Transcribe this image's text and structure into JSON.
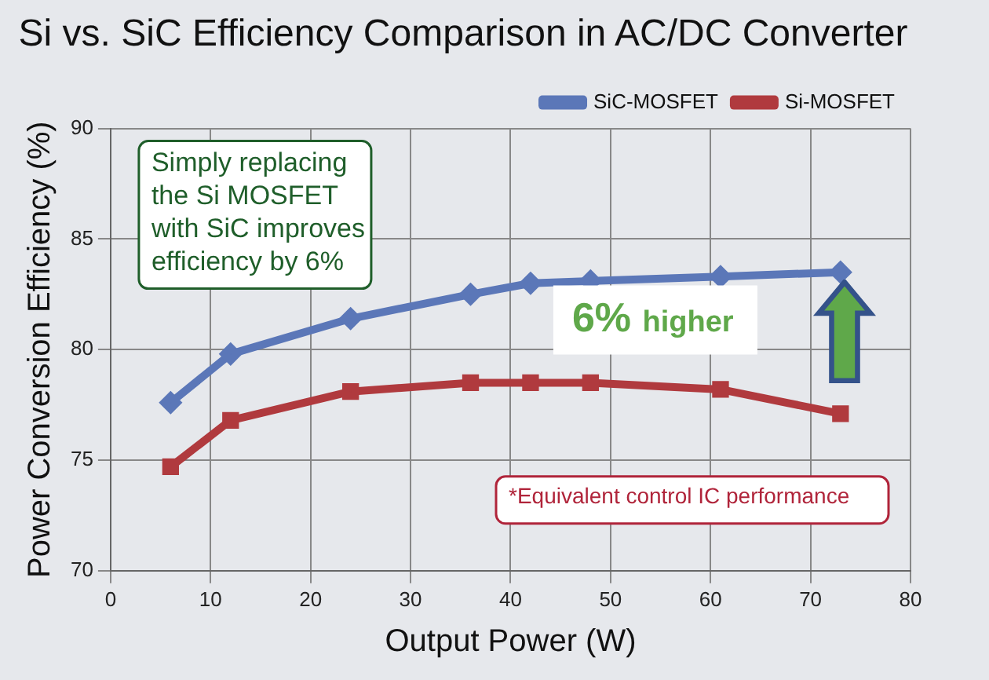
{
  "chart_data": {
    "type": "line",
    "title": "Si vs. SiC Efficiency Comparison in AC/DC Converter",
    "xlabel": "Output Power (W)",
    "ylabel": "Power Conversion Efficiency (%)",
    "xlim": [
      0,
      80
    ],
    "xticks": [
      0,
      10,
      20,
      30,
      40,
      50,
      60,
      70,
      80
    ],
    "ylim": [
      70,
      90
    ],
    "yticks": [
      70,
      75,
      80,
      85,
      90
    ],
    "grid": true,
    "legend": "top right",
    "line_style": "solid",
    "series": [
      {
        "name": "SiC-MOSFET",
        "color": "#5b77b8",
        "marker": "diamond",
        "x": [
          6,
          12,
          24,
          36,
          42,
          48,
          61,
          73
        ],
        "values": [
          77.6,
          79.8,
          81.4,
          82.5,
          83.0,
          83.1,
          83.3,
          83.5
        ]
      },
      {
        "name": "Si-MOSFET",
        "color": "#b03a3e",
        "marker": "square",
        "x": [
          6,
          12,
          24,
          36,
          42,
          48,
          61,
          73
        ],
        "values": [
          74.7,
          76.8,
          78.1,
          78.5,
          78.5,
          78.5,
          78.2,
          77.1
        ]
      }
    ],
    "annotations": [
      "Simply replacing\nthe Si MOSFET\nwith SiC improves\nefficiency by 6%",
      "6% higher",
      "*Equivalent control IC performance"
    ]
  }
}
